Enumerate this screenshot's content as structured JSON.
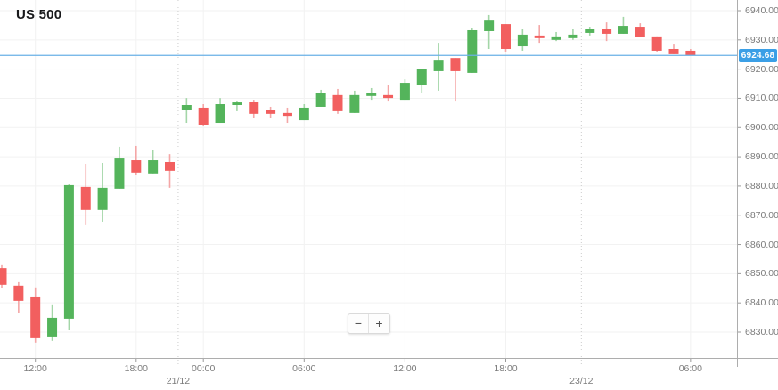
{
  "controls": {
    "zoom_out": "−",
    "zoom_in": "+"
  },
  "colors": {
    "up": "#54b45b",
    "down": "#f25f5f",
    "up_wick": "#a3d6a7",
    "down_wick": "#f4a6a6",
    "grid": "#f2f2f2",
    "boundary_line": "#cccccc",
    "axis_line": "#adadad",
    "tick_mark": "#999999",
    "price_line": "#6ab0e6",
    "badge": "#3b9fe6"
  },
  "chart_data": {
    "type": "candlestick",
    "title": "US 500",
    "legend_position": "none",
    "grid": true,
    "y_axis": {
      "min": 6824,
      "max": 6941,
      "tick_interval": 10,
      "ticks": [
        6940,
        6930,
        6920,
        6910,
        6900,
        6890,
        6880,
        6870,
        6860,
        6850,
        6840,
        6830
      ]
    },
    "x_axis": {
      "ticks": [
        {
          "label": "12:00",
          "index": 2
        },
        {
          "label": "18:00",
          "index": 8
        },
        {
          "label": "00:00",
          "index": 12
        },
        {
          "label": "06:00",
          "index": 18
        },
        {
          "label": "12:00",
          "index": 24
        },
        {
          "label": "18:00",
          "index": 30
        },
        {
          "label": "06:00",
          "index": 41
        }
      ],
      "day_boundaries": [
        {
          "label": "21/12",
          "index": 10.5
        },
        {
          "label": "23/12",
          "index": 34.5
        }
      ]
    },
    "price_line": {
      "value": 6924.68,
      "label": "6924.68"
    },
    "candles": [
      {
        "o": 6851.9,
        "h": 6852.9,
        "l": 6845.2,
        "c": 6846.2
      },
      {
        "o": 6845.9,
        "h": 6847.1,
        "l": 6836.4,
        "c": 6840.7
      },
      {
        "o": 6842.2,
        "h": 6845.3,
        "l": 6826.4,
        "c": 6827.9
      },
      {
        "o": 6828.5,
        "h": 6839.5,
        "l": 6827.0,
        "c": 6834.9
      },
      {
        "o": 6834.6,
        "h": 6880.6,
        "l": 6830.6,
        "c": 6880.3
      },
      {
        "o": 6879.7,
        "h": 6887.6,
        "l": 6866.6,
        "c": 6871.8
      },
      {
        "o": 6871.8,
        "h": 6887.9,
        "l": 6867.8,
        "c": 6879.4
      },
      {
        "o": 6879.1,
        "h": 6893.4,
        "l": 6879.1,
        "c": 6889.4
      },
      {
        "o": 6888.8,
        "h": 6893.7,
        "l": 6883.9,
        "c": 6884.6
      },
      {
        "o": 6884.3,
        "h": 6892.2,
        "l": 6884.3,
        "c": 6888.8
      },
      {
        "o": 6888.2,
        "h": 6890.9,
        "l": 6879.4,
        "c": 6885.2
      },
      {
        "o": 6905.9,
        "h": 6910.1,
        "l": 6901.6,
        "c": 6907.7
      },
      {
        "o": 6906.8,
        "h": 6908.0,
        "l": 6900.7,
        "c": 6901.0
      },
      {
        "o": 6901.6,
        "h": 6910.1,
        "l": 6901.6,
        "c": 6908.0
      },
      {
        "o": 6907.7,
        "h": 6909.2,
        "l": 6905.6,
        "c": 6908.6
      },
      {
        "o": 6908.9,
        "h": 6909.5,
        "l": 6903.4,
        "c": 6904.7
      },
      {
        "o": 6905.9,
        "h": 6907.1,
        "l": 6903.4,
        "c": 6904.7
      },
      {
        "o": 6905.0,
        "h": 6906.8,
        "l": 6901.6,
        "c": 6904.0
      },
      {
        "o": 6902.5,
        "h": 6908.0,
        "l": 6902.5,
        "c": 6906.8
      },
      {
        "o": 6907.1,
        "h": 6912.9,
        "l": 6907.1,
        "c": 6911.7
      },
      {
        "o": 6911.1,
        "h": 6913.2,
        "l": 6904.7,
        "c": 6905.6
      },
      {
        "o": 6905.0,
        "h": 6912.6,
        "l": 6905.0,
        "c": 6911.1
      },
      {
        "o": 6910.8,
        "h": 6913.5,
        "l": 6909.5,
        "c": 6911.7
      },
      {
        "o": 6911.1,
        "h": 6914.4,
        "l": 6909.2,
        "c": 6910.1
      },
      {
        "o": 6909.5,
        "h": 6916.5,
        "l": 6909.5,
        "c": 6915.3
      },
      {
        "o": 6914.7,
        "h": 6919.9,
        "l": 6911.7,
        "c": 6919.9
      },
      {
        "o": 6919.3,
        "h": 6929.0,
        "l": 6912.6,
        "c": 6923.2
      },
      {
        "o": 6923.8,
        "h": 6923.8,
        "l": 6909.2,
        "c": 6919.3
      },
      {
        "o": 6918.7,
        "h": 6933.9,
        "l": 6918.7,
        "c": 6933.3
      },
      {
        "o": 6933.0,
        "h": 6938.5,
        "l": 6926.9,
        "c": 6936.6
      },
      {
        "o": 6935.4,
        "h": 6935.4,
        "l": 6926.0,
        "c": 6926.9
      },
      {
        "o": 6927.8,
        "h": 6933.6,
        "l": 6926.3,
        "c": 6931.8
      },
      {
        "o": 6931.5,
        "h": 6935.1,
        "l": 6929.0,
        "c": 6930.6
      },
      {
        "o": 6930.0,
        "h": 6932.7,
        "l": 6929.6,
        "c": 6931.2
      },
      {
        "o": 6930.6,
        "h": 6933.6,
        "l": 6930.0,
        "c": 6931.8
      },
      {
        "o": 6932.4,
        "h": 6934.5,
        "l": 6931.5,
        "c": 6933.6
      },
      {
        "o": 6933.6,
        "h": 6936.0,
        "l": 6929.6,
        "c": 6932.1
      },
      {
        "o": 6932.1,
        "h": 6937.9,
        "l": 6932.1,
        "c": 6934.8
      },
      {
        "o": 6934.5,
        "h": 6935.7,
        "l": 6930.9,
        "c": 6930.9
      },
      {
        "o": 6931.2,
        "h": 6931.2,
        "l": 6926.0,
        "c": 6926.3
      },
      {
        "o": 6926.9,
        "h": 6928.7,
        "l": 6925.1,
        "c": 6925.1
      },
      {
        "o": 6926.3,
        "h": 6926.9,
        "l": 6924.68,
        "c": 6924.68
      }
    ]
  }
}
